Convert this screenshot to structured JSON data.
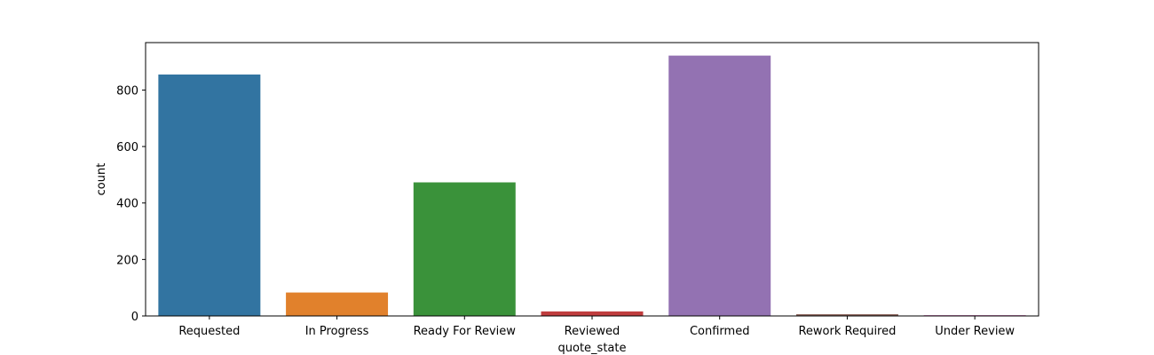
{
  "chart_data": {
    "type": "bar",
    "title": "",
    "xlabel": "quote_state",
    "ylabel": "count",
    "categories": [
      "Requested",
      "In Progress",
      "Ready For Review",
      "Reviewed",
      "Confirmed",
      "Rework Required",
      "Under Review"
    ],
    "values": [
      855,
      83,
      473,
      16,
      922,
      6,
      3
    ],
    "colors": [
      "#3274a1",
      "#e1812c",
      "#3a923a",
      "#c03d3e",
      "#9372b2",
      "#845b53",
      "#d684bd"
    ],
    "ylim": [
      0,
      968
    ],
    "yticks": [
      0,
      200,
      400,
      600,
      800
    ],
    "grid": false,
    "legend": "none"
  }
}
